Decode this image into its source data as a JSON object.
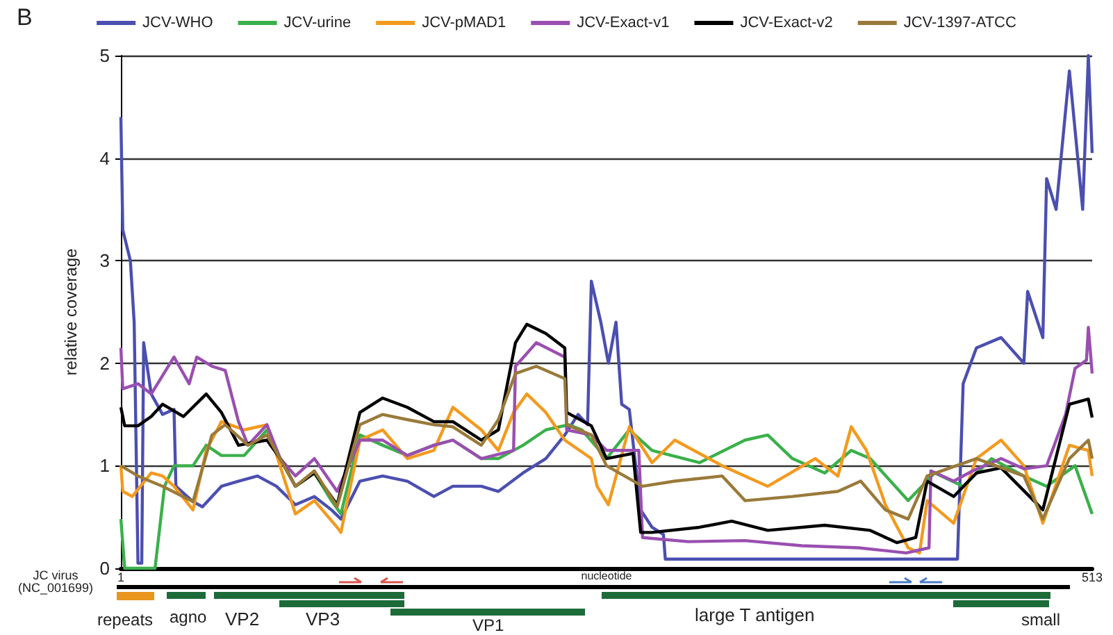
{
  "chart_data": {
    "type": "line",
    "ylabel": "relative coverage",
    "xlabel": "nucleotide",
    "xlim": [
      1,
      513
    ],
    "xticks": [
      1,
      513
    ],
    "ylim": [
      0,
      5
    ],
    "yticks": [
      0,
      1,
      2,
      3,
      4,
      5
    ],
    "grid": "y",
    "legend": "top",
    "marker": "none",
    "line_style": "solid",
    "annotations": [
      "B",
      "JC virus (NC_001699)",
      "repeats",
      "agno",
      "VP2",
      "VP3",
      "VP1",
      "large T antigen",
      "small"
    ],
    "series": [
      {
        "name": "JCV-WHO",
        "color": "#4b4fb0",
        "x": [
          1,
          2,
          6,
          8,
          10,
          12,
          13,
          17,
          23,
          29,
          30,
          39,
          44,
          54,
          63,
          73,
          83,
          93,
          103,
          112,
          117,
          127,
          139,
          152,
          166,
          176,
          191,
          200,
          213,
          225,
          235,
          242,
          247,
          249,
          254,
          258,
          262,
          265,
          269,
          275,
          281,
          287,
          288,
          330,
          380,
          430,
          442,
          445,
          452,
          465,
          477,
          479,
          487,
          489,
          494,
          501,
          508,
          511,
          513
        ],
        "values": [
          4.4,
          3.3,
          3.0,
          2.4,
          0.05,
          0.05,
          2.2,
          1.7,
          1.5,
          1.55,
          0.8,
          0.65,
          0.6,
          0.8,
          0.85,
          0.9,
          0.8,
          0.62,
          0.7,
          0.57,
          0.48,
          0.85,
          0.9,
          0.85,
          0.7,
          0.8,
          0.8,
          0.75,
          0.93,
          1.07,
          1.3,
          1.5,
          1.4,
          2.8,
          2.4,
          2.0,
          2.4,
          1.6,
          1.55,
          0.57,
          0.4,
          0.33,
          0.09,
          0.09,
          0.09,
          0.09,
          0.09,
          1.8,
          2.15,
          2.25,
          2.0,
          2.7,
          2.25,
          3.8,
          3.5,
          4.85,
          3.5,
          5.0,
          4.05
        ]
      },
      {
        "name": "JCV-urine",
        "color": "#3ab04a",
        "x": [
          1,
          3,
          10,
          19,
          24,
          29,
          39,
          46,
          54,
          66,
          78,
          85,
          93,
          103,
          112,
          117,
          127,
          139,
          152,
          166,
          176,
          191,
          200,
          213,
          225,
          237,
          244,
          257,
          269,
          281,
          306,
          330,
          342,
          355,
          372,
          386,
          396,
          416,
          430,
          445,
          460,
          477,
          489,
          504,
          513
        ],
        "values": [
          0.48,
          0,
          0,
          0,
          0.8,
          1.0,
          1.0,
          1.2,
          1.1,
          1.1,
          1.35,
          1.07,
          0.8,
          0.93,
          0.66,
          0.53,
          1.3,
          1.2,
          1.1,
          1.2,
          1.25,
          1.07,
          1.07,
          1.2,
          1.35,
          1.4,
          1.35,
          1.07,
          1.35,
          1.15,
          1.03,
          1.25,
          1.3,
          1.07,
          0.93,
          1.15,
          1.07,
          0.66,
          0.93,
          0.8,
          1.07,
          0.9,
          0.8,
          1.0,
          0.53
        ]
      },
      {
        "name": "JCV-pMAD1",
        "color": "#f39a1e",
        "x": [
          1,
          2,
          7,
          17,
          23,
          29,
          39,
          46,
          54,
          66,
          78,
          93,
          103,
          115,
          117,
          127,
          139,
          152,
          166,
          176,
          191,
          200,
          208,
          215,
          225,
          235,
          249,
          252,
          258,
          269,
          281,
          293,
          318,
          342,
          367,
          379,
          386,
          394,
          404,
          416,
          422,
          426,
          440,
          452,
          465,
          477,
          487,
          501,
          511,
          513
        ],
        "values": [
          1.0,
          0.75,
          0.7,
          0.93,
          0.9,
          0.8,
          0.57,
          1.15,
          1.43,
          1.35,
          1.4,
          0.53,
          0.66,
          0.4,
          0.35,
          1.25,
          1.35,
          1.07,
          1.15,
          1.57,
          1.35,
          1.15,
          1.52,
          1.7,
          1.52,
          1.25,
          1.07,
          0.8,
          0.62,
          1.38,
          1.03,
          1.25,
          1.0,
          0.8,
          1.07,
          0.9,
          1.38,
          1.15,
          0.62,
          0.2,
          0.15,
          0.66,
          0.44,
          1.07,
          1.25,
          1.0,
          0.44,
          1.2,
          1.15,
          0.9
        ]
      },
      {
        "name": "JCV-Exact-v1",
        "color": "#9a4fb0",
        "x": [
          1,
          2,
          10,
          17,
          29,
          37,
          41,
          49,
          56,
          63,
          68,
          78,
          85,
          93,
          103,
          115,
          127,
          139,
          152,
          166,
          176,
          191,
          208,
          209,
          220,
          235,
          236,
          249,
          257,
          274,
          276,
          300,
          330,
          360,
          390,
          415,
          427,
          428,
          440,
          450,
          465,
          477,
          489,
          499,
          504,
          510,
          511,
          513
        ],
        "values": [
          2.15,
          1.75,
          1.8,
          1.7,
          2.06,
          1.8,
          2.06,
          1.97,
          1.93,
          1.43,
          1.2,
          1.4,
          1.07,
          0.9,
          1.07,
          0.75,
          1.25,
          1.25,
          1.1,
          1.2,
          1.25,
          1.07,
          1.15,
          1.97,
          2.2,
          2.06,
          1.35,
          1.3,
          1.15,
          1.15,
          0.3,
          0.26,
          0.27,
          0.22,
          0.2,
          0.15,
          0.2,
          0.95,
          0.85,
          0.95,
          1.07,
          0.97,
          1.0,
          1.5,
          1.95,
          2.03,
          2.35,
          1.9
        ]
      },
      {
        "name": "JCV-Exact-v2",
        "color": "#000000",
        "x": [
          1,
          3,
          10,
          17,
          23,
          34,
          46,
          54,
          63,
          78,
          85,
          93,
          103,
          115,
          127,
          139,
          152,
          166,
          176,
          191,
          200,
          209,
          215,
          225,
          235,
          236,
          249,
          257,
          271,
          275,
          281,
          306,
          323,
          342,
          372,
          396,
          410,
          420,
          426,
          440,
          452,
          465,
          487,
          501,
          511,
          513
        ],
        "values": [
          1.57,
          1.39,
          1.39,
          1.48,
          1.6,
          1.48,
          1.7,
          1.52,
          1.2,
          1.25,
          1.07,
          0.8,
          0.93,
          0.62,
          1.52,
          1.66,
          1.57,
          1.43,
          1.43,
          1.25,
          1.35,
          2.2,
          2.38,
          2.29,
          2.15,
          1.52,
          1.39,
          1.07,
          1.12,
          0.35,
          0.35,
          0.4,
          0.46,
          0.37,
          0.42,
          0.37,
          0.25,
          0.3,
          0.85,
          0.7,
          0.93,
          0.98,
          0.57,
          1.6,
          1.65,
          1.47
        ]
      },
      {
        "name": "JCV-1397-ATCC",
        "color": "#9a7a3a",
        "x": [
          1,
          10,
          23,
          39,
          49,
          56,
          68,
          78,
          93,
          103,
          115,
          127,
          139,
          152,
          166,
          176,
          191,
          200,
          209,
          220,
          235,
          236,
          249,
          257,
          276,
          293,
          318,
          330,
          355,
          379,
          391,
          404,
          416,
          426,
          452,
          477,
          487,
          501,
          511,
          513
        ],
        "values": [
          1.0,
          0.9,
          0.8,
          0.65,
          1.3,
          1.4,
          1.2,
          1.3,
          0.8,
          0.95,
          0.6,
          1.4,
          1.5,
          1.45,
          1.4,
          1.38,
          1.2,
          1.45,
          1.9,
          1.97,
          1.85,
          1.4,
          1.3,
          1.0,
          0.8,
          0.85,
          0.9,
          0.66,
          0.7,
          0.75,
          0.85,
          0.57,
          0.48,
          0.9,
          1.07,
          0.9,
          0.48,
          1.07,
          1.25,
          1.07
        ]
      }
    ]
  }
}
